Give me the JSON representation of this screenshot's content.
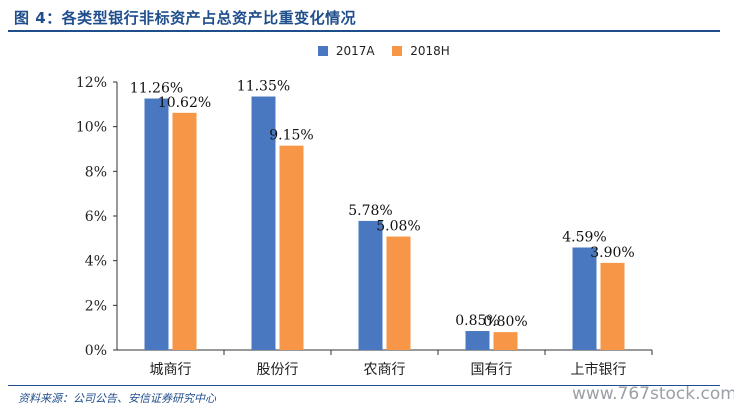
{
  "header": {
    "title": "图 4：各类型银行非标资产占总资产比重变化情况"
  },
  "footer": {
    "source": "资料来源：公司公告、安信证券研究中心",
    "watermark": "www.767stock.com"
  },
  "colors": {
    "series_2017": "#4a78c0",
    "series_2018": "#f79646",
    "accent": "#1f4e8c"
  },
  "chart_data": {
    "type": "bar",
    "title": "",
    "xlabel": "",
    "ylabel": "",
    "categories": [
      "城商行",
      "股份行",
      "农商行",
      "国有行",
      "上市银行"
    ],
    "series": [
      {
        "name": "2017A",
        "values": [
          11.26,
          11.35,
          5.78,
          0.85,
          4.59
        ],
        "labels": [
          "11.26%",
          "11.35%",
          "5.78%",
          "0.85%",
          "4.59%"
        ]
      },
      {
        "name": "2018H",
        "values": [
          10.62,
          9.15,
          5.08,
          0.8,
          3.9
        ],
        "labels": [
          "10.62%",
          "9.15%",
          "5.08%",
          "0.80%",
          "3.90%"
        ]
      }
    ],
    "ylim": [
      0,
      12
    ],
    "yticks": [
      "0%",
      "2%",
      "4%",
      "6%",
      "8%",
      "10%",
      "12%"
    ],
    "grid": false,
    "legend": "top-center"
  }
}
